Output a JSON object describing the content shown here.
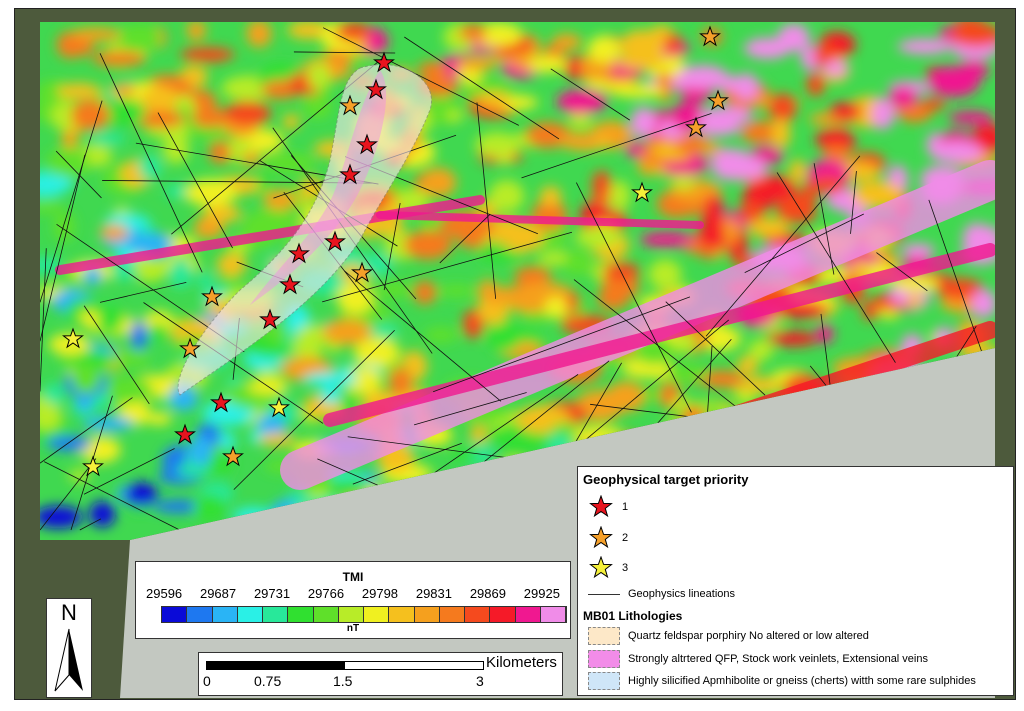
{
  "map": {
    "targets": [
      1,
      1,
      1,
      1,
      1,
      1,
      1,
      1,
      1,
      1,
      2,
      2,
      2,
      2,
      2,
      2,
      2,
      2,
      3,
      3,
      3,
      3
    ],
    "priority_colors": {
      "1": "#e8141e",
      "2": "#f5a02a",
      "3": "#f5f03a"
    }
  },
  "tmi_legend": {
    "title": "TMI",
    "ticks": [
      "29596",
      "29687",
      "29731",
      "29766",
      "29798",
      "29831",
      "29869",
      "29925"
    ],
    "unit": "nT",
    "colors": [
      "#0a0ad8",
      "#1e78f0",
      "#2ab4f5",
      "#2af0e6",
      "#28e89a",
      "#30e030",
      "#5fe02a",
      "#b8ec28",
      "#f0f020",
      "#f5c01e",
      "#f5a01e",
      "#f57a1e",
      "#f54a1e",
      "#f51a28",
      "#f01890",
      "#f08ce8"
    ]
  },
  "scale_bar": {
    "unit": "Kilometers",
    "ticks": [
      "0",
      "0.75",
      "1.5",
      "3"
    ]
  },
  "north_arrow": {
    "label": "N"
  },
  "legend": {
    "title": "Geophysical target priority",
    "priorities": [
      "1",
      "2",
      "3"
    ],
    "lineations": "Geophysics lineations",
    "lith_title": "MB01 Lithologies",
    "lithologies": [
      {
        "label": "Quartz feldspar porphiry No altered or low altered",
        "color": "#fde8c8"
      },
      {
        "label": "Strongly altrtered QFP, Stock work veinlets, Extensional veins",
        "color": "#f28ce8"
      },
      {
        "label": "Highly silicified Apmhibolite or gneiss (cherts) witth some rare sulphides",
        "color": "#cfe6f8"
      }
    ]
  }
}
